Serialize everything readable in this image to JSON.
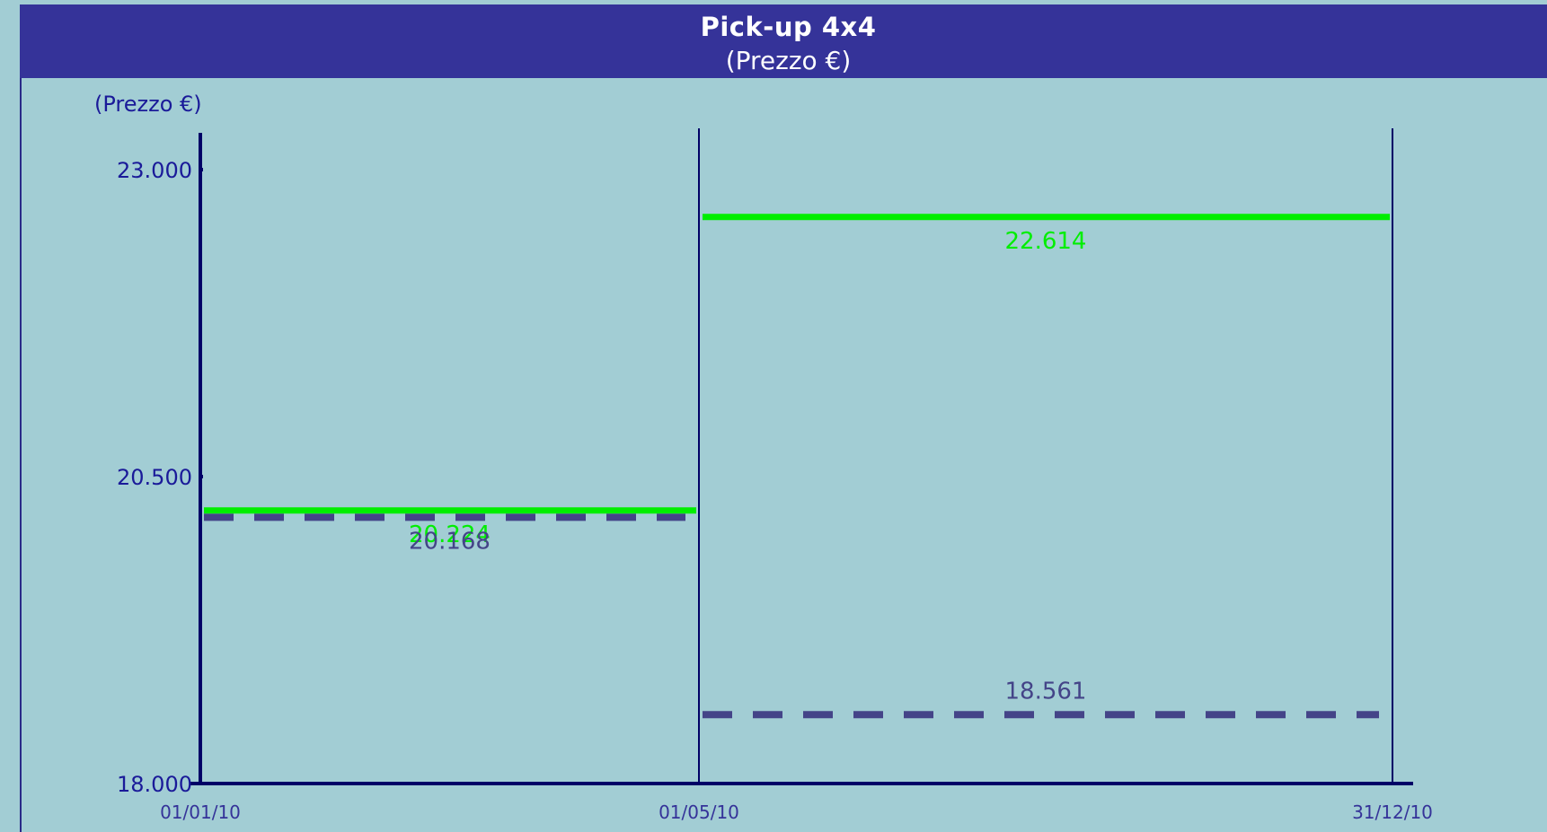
{
  "chart_data": {
    "type": "line",
    "title": "Pick-up 4x4",
    "subtitle": "(Prezzo €)",
    "ylabel": "(Prezzo €)",
    "xlabel": "",
    "ylim": [
      18000,
      23000
    ],
    "y_ticks": [
      {
        "value": 23000,
        "label": "23.000"
      },
      {
        "value": 20500,
        "label": "20.500"
      },
      {
        "value": 18000,
        "label": "18.000"
      }
    ],
    "x_ticks": [
      "01/01/10",
      "01/05/10",
      "31/12/10"
    ],
    "grid": false,
    "legend": "none",
    "series": [
      {
        "style": "solid",
        "color": "#00ee00",
        "segments": [
          {
            "from": "01/01/10",
            "to": "01/05/10",
            "value": 20224,
            "label": "20.224"
          },
          {
            "from": "01/05/10",
            "to": "31/12/10",
            "value": 22614,
            "label": "22.614"
          }
        ]
      },
      {
        "style": "dashed",
        "color": "#444488",
        "segments": [
          {
            "from": "01/01/10",
            "to": "01/05/10",
            "value": 20168,
            "label": "20.168"
          },
          {
            "from": "01/05/10",
            "to": "31/12/10",
            "value": 18561,
            "label": "18.561"
          }
        ]
      }
    ]
  },
  "colors": {
    "header_bg": "#353399",
    "plot_bg": "#a2cdd4",
    "axis": "#000066",
    "text": "#1a1a99"
  }
}
